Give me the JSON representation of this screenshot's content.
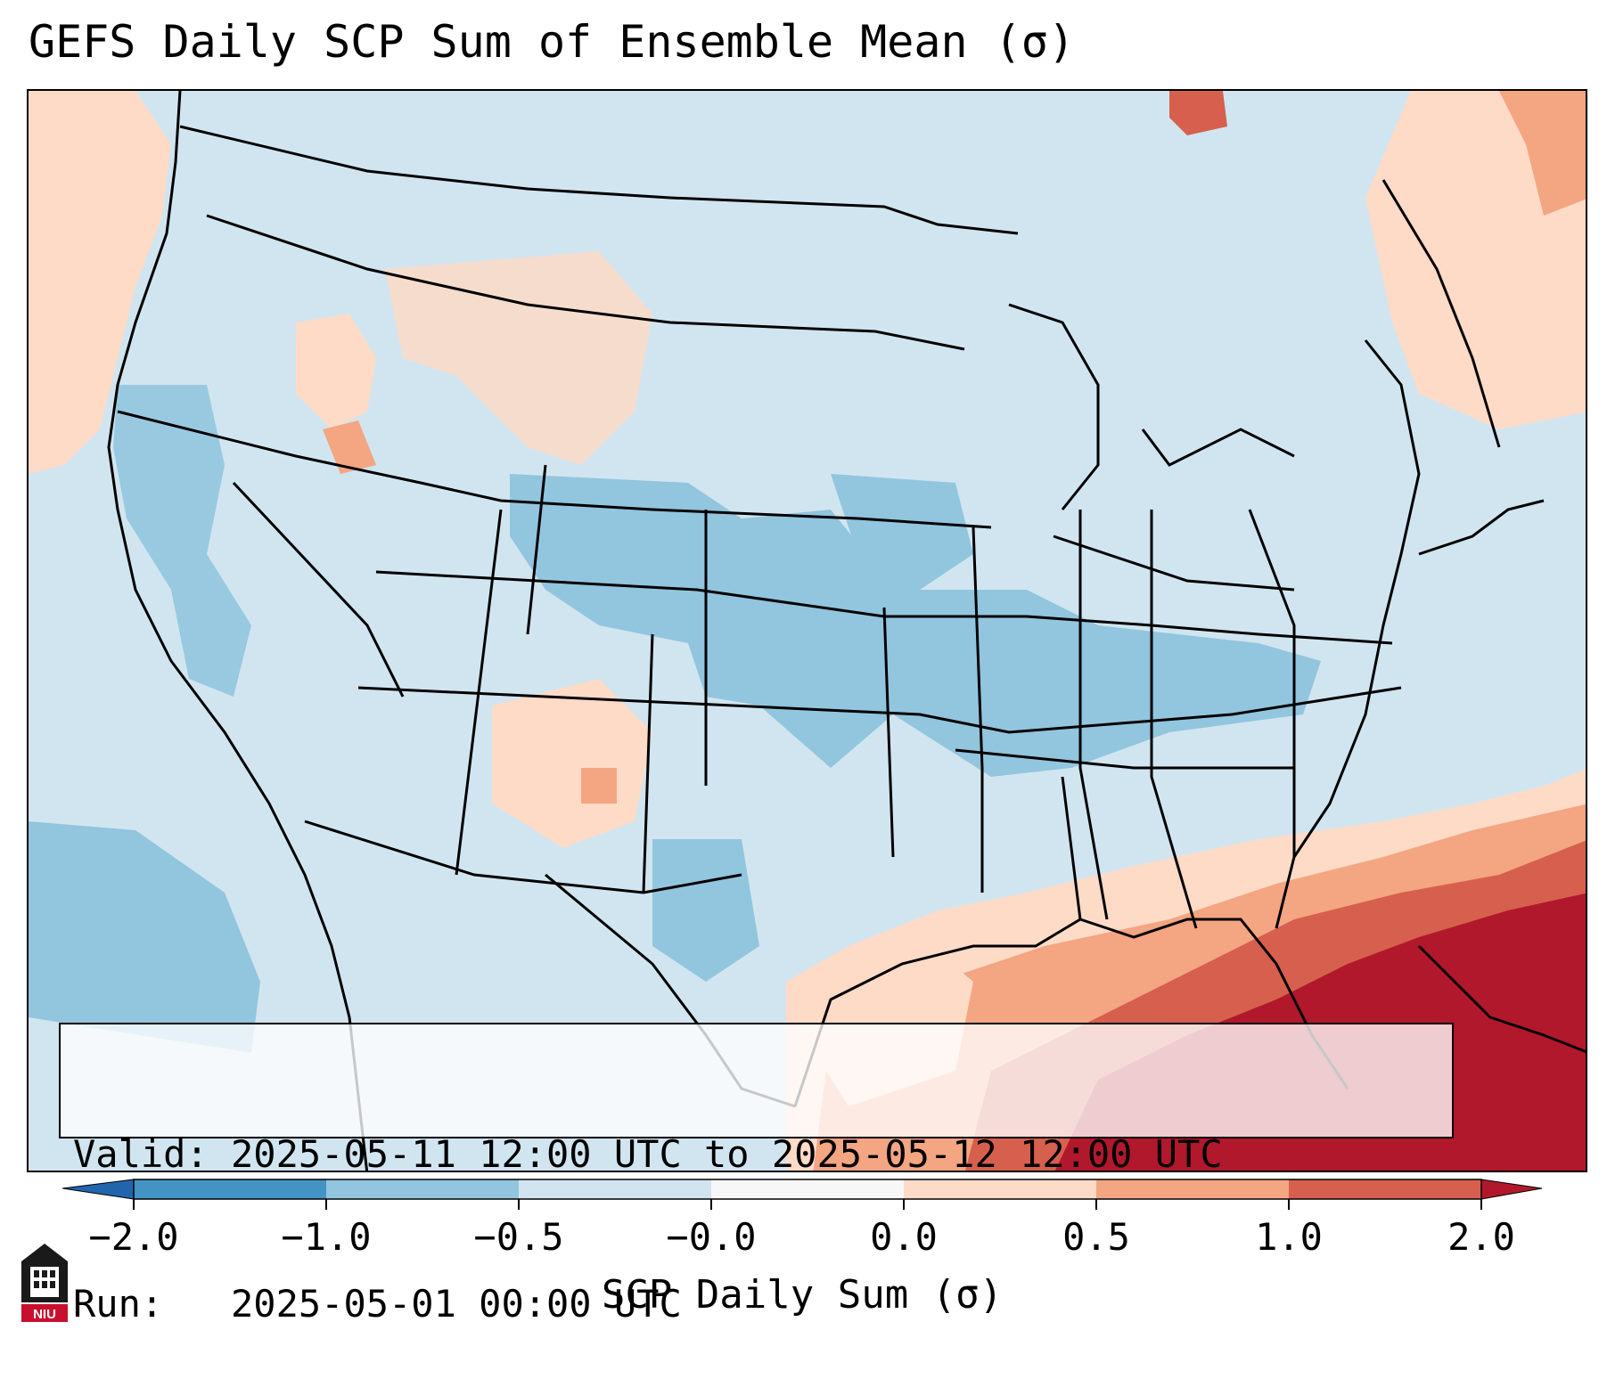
{
  "title": "GEFS Daily SCP Sum of Ensemble Mean (σ)",
  "info": {
    "valid_label": "Valid:",
    "valid_value": "2025-05-11 12:00 UTC to 2025-05-12 12:00 UTC",
    "run_label": "Run:",
    "run_value": "2025-05-01 00:00 UTC"
  },
  "colorbar": {
    "label": "SCP Daily Sum (σ)",
    "ticks": [
      "−2.0",
      "−1.0",
      "−0.5",
      "−0.0",
      "0.0",
      "0.5",
      "1.0",
      "2.0"
    ],
    "colors": [
      "#4393c3",
      "#92c5de",
      "#d1e5f0",
      "#f7f7f7",
      "#fddbc7",
      "#f4a582",
      "#d6604d"
    ],
    "extend_low_color": "#2166ac",
    "extend_high_color": "#b2182b"
  },
  "logo": {
    "text": "NIU",
    "icon": "niu-building-icon"
  }
}
